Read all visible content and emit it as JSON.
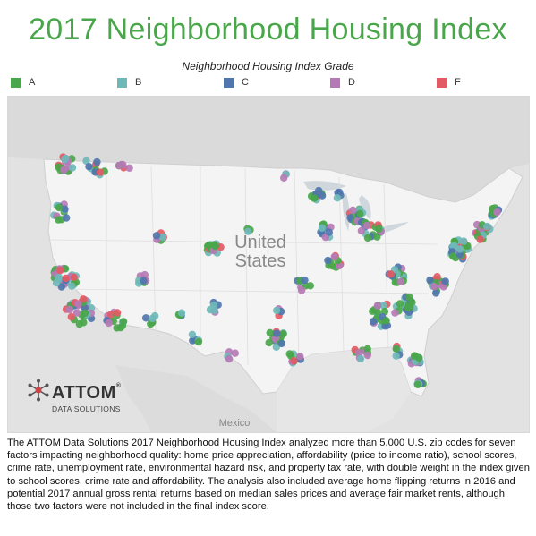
{
  "title": "2017 Neighborhood Housing Index",
  "legend": {
    "title": "Neighborhood Housing Index Grade",
    "items": [
      {
        "label": "A",
        "color": "#4aa64a"
      },
      {
        "label": "B",
        "color": "#6fb8b8"
      },
      {
        "label": "C",
        "color": "#4f76ad"
      },
      {
        "label": "D",
        "color": "#b57ab5"
      },
      {
        "label": "F",
        "color": "#e35a64"
      }
    ]
  },
  "map": {
    "country_label": [
      "United",
      "States"
    ],
    "mexico_label": "Mexico"
  },
  "logo": {
    "word": "ATTOM",
    "registered": "®",
    "sub": "DATA SOLUTIONS"
  },
  "footer": "The ATTOM Data Solutions 2017 Neighborhood Housing Index analyzed more than 5,000 U.S. zip codes for seven factors impacting neighborhood quality: home price appreciation, affordability (price to income ratio), school scores, crime rate, unemployment rate, environmental hazard risk, and property tax rate, with double weight in the index given to school scores, crime rate and affordability. The analysis also included average home flipping returns in 2016 and potential 2017 annual gross rental returns based on median sales prices and average fair market rents, although those two factors were not included in the final index score."
}
